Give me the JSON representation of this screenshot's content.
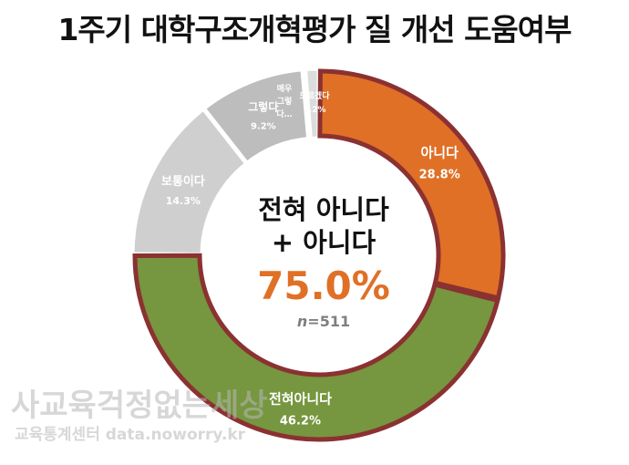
{
  "chart_data": {
    "type": "pie",
    "title": "1주기 대학구조개혁평가 질 개선 도움여부",
    "categories": [
      "아니다",
      "전혀아니다",
      "보통이다",
      "그렇다",
      "매우 그렇다",
      "모르겠다"
    ],
    "labels_shown": [
      "아니다",
      "전혀아니다",
      "보통이다",
      "그렇다",
      "매우 그렇다",
      "모르겠다"
    ],
    "values": [
      28.8,
      46.2,
      14.3,
      9.2,
      0.2,
      1.2
    ],
    "value_labels": [
      "28.8%",
      "46.2%",
      "14.3%",
      "9.2%",
      "",
      "1.2%"
    ],
    "colors": [
      "#e07026",
      "#76963f",
      "#cfcfcf",
      "#bdbdbd",
      "#c8c8c8",
      "#dcdcdc"
    ],
    "highlight_outline": "#8b3131",
    "center": {
      "line1": "전혀 아니다",
      "line2": "+ 아니다",
      "value": "75.0%",
      "n_label": "n",
      "n_value": "=511"
    }
  },
  "watermark": {
    "line1": "사교육걱정없는세상",
    "line2": "교육통계센터 data.noworry.kr"
  }
}
